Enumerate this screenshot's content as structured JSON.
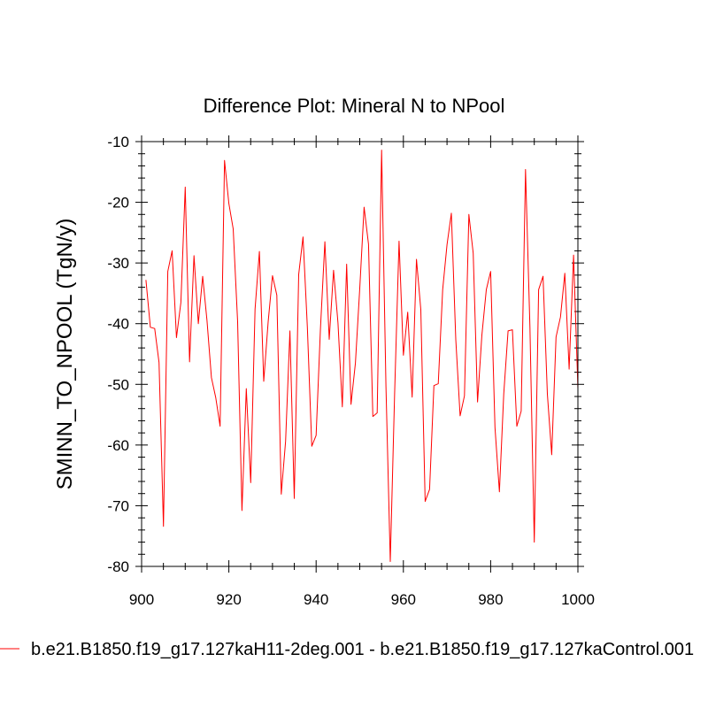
{
  "chart_data": {
    "type": "line",
    "title": "Difference Plot: Mineral N to NPool",
    "xlabel": "",
    "ylabel": "SMINN_TO_NPOOL  (TgN/y)",
    "xlim": [
      900,
      1000
    ],
    "ylim": [
      -80,
      -10
    ],
    "x_ticks": [
      900,
      920,
      940,
      960,
      980,
      1000
    ],
    "x_tick_labels": [
      "900",
      "920",
      "940",
      "960",
      "980",
      "1000"
    ],
    "y_ticks": [
      -80,
      -70,
      -60,
      -50,
      -40,
      -30,
      -20,
      -10
    ],
    "y_tick_labels": [
      "-80",
      "-70",
      "-60",
      "-50",
      "-40",
      "-30",
      "-20",
      "-10"
    ],
    "grid": false,
    "legend_position": "bottom",
    "x": [
      901,
      902,
      903,
      904,
      905,
      906,
      907,
      908,
      909,
      910,
      911,
      912,
      913,
      914,
      915,
      916,
      917,
      918,
      919,
      920,
      921,
      922,
      923,
      924,
      925,
      926,
      927,
      928,
      929,
      930,
      931,
      932,
      933,
      934,
      935,
      936,
      937,
      938,
      939,
      940,
      941,
      942,
      943,
      944,
      945,
      946,
      947,
      948,
      949,
      950,
      951,
      952,
      953,
      954,
      955,
      956,
      957,
      958,
      959,
      960,
      961,
      962,
      963,
      964,
      965,
      966,
      967,
      968,
      969,
      970,
      971,
      972,
      973,
      974,
      975,
      976,
      977,
      978,
      979,
      980,
      981,
      982,
      983,
      984,
      985,
      986,
      987,
      988,
      989,
      990,
      991,
      992,
      993,
      994,
      995,
      996,
      997,
      998,
      999,
      1000
    ],
    "series": [
      {
        "name": "b.e21.B1850.f19_g17.127kaH11-2deg.001 - b.e21.B1850.f19_g17.127kaControl.001",
        "color": "#ff0000",
        "values": [
          -32.8,
          -40.6,
          -40.8,
          -46.4,
          -73.4,
          -31.4,
          -28.0,
          -42.3,
          -36.5,
          -17.5,
          -46.3,
          -28.8,
          -40.0,
          -32.2,
          -39.5,
          -48.9,
          -52.2,
          -56.9,
          -13.1,
          -20.2,
          -24.4,
          -39.7,
          -70.8,
          -50.7,
          -66.2,
          -37.6,
          -28.1,
          -49.5,
          -39.7,
          -32.1,
          -35.3,
          -68.1,
          -59.4,
          -41.2,
          -68.8,
          -31.9,
          -25.7,
          -40.6,
          -60.2,
          -58.4,
          -40.8,
          -26.5,
          -42.6,
          -31.2,
          -39.9,
          -53.7,
          -30.2,
          -53.3,
          -46.5,
          -34.2,
          -20.8,
          -26.9,
          -55.3,
          -54.7,
          -11.4,
          -50.3,
          -79.2,
          -51.5,
          -26.4,
          -45.2,
          -38.1,
          -52.1,
          -29.4,
          -37.7,
          -69.3,
          -67.3,
          -50.2,
          -49.9,
          -34.4,
          -27.0,
          -21.8,
          -42.6,
          -55.2,
          -51.9,
          -22.0,
          -28.4,
          -52.9,
          -41.9,
          -34.4,
          -31.4,
          -57.1,
          -67.7,
          -51.6,
          -41.2,
          -41.0,
          -56.9,
          -54.4,
          -14.6,
          -40.6,
          -76.0,
          -34.4,
          -32.2,
          -51.6,
          -61.6,
          -42.2,
          -38.9,
          -31.7,
          -47.5,
          -28.7,
          -50.7
        ]
      }
    ]
  }
}
